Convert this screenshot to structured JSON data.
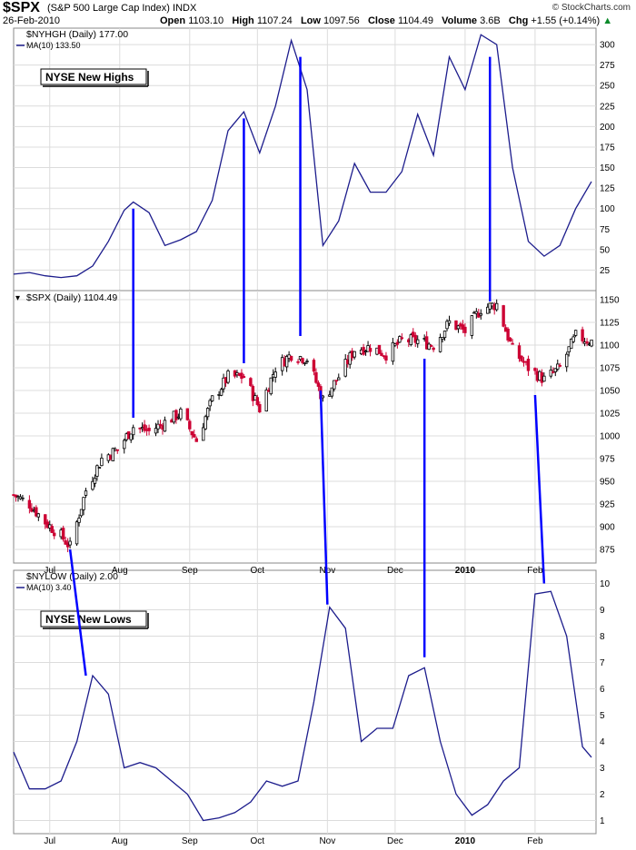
{
  "header": {
    "symbol": "$SPX",
    "description": "(S&P 500 Large Cap Index)",
    "exchange": "INDX",
    "date": "26-Feb-2010",
    "copyright": "© StockCharts.com",
    "open_label": "Open",
    "open": "1103.10",
    "high_label": "High",
    "high": "1107.24",
    "low_label": "Low",
    "low": "1097.56",
    "close_label": "Close",
    "close": "1104.49",
    "volume_label": "Volume",
    "volume": "3.6B",
    "chg_label": "Chg",
    "chg": "+1.55 (+0.14%)",
    "chg_icon": "up-triangle-icon"
  },
  "colors": {
    "line": "#1c1c8c",
    "annotation": "#0000ff",
    "candle_up": "#000000",
    "candle_down": "#cc0033",
    "grid": "#dcdcdc"
  },
  "chart_data": [
    {
      "type": "line",
      "panel": "top",
      "legend_title": "$NYHGH (Daily) 177.00",
      "legend_ma": "MA(10) 133.50",
      "label_box": "NYSE New Highs",
      "ylim": [
        0,
        320
      ],
      "yticks": [
        25,
        50,
        75,
        100,
        125,
        150,
        175,
        200,
        225,
        250,
        275,
        300
      ],
      "series": [
        {
          "name": "MA(10)",
          "points": [
            [
              "2009-06-15",
              20
            ],
            [
              "2009-06-22",
              22
            ],
            [
              "2009-06-29",
              18
            ],
            [
              "2009-07-06",
              16
            ],
            [
              "2009-07-13",
              18
            ],
            [
              "2009-07-20",
              30
            ],
            [
              "2009-07-27",
              60
            ],
            [
              "2009-08-03",
              98
            ],
            [
              "2009-08-07",
              108
            ],
            [
              "2009-08-14",
              95
            ],
            [
              "2009-08-21",
              55
            ],
            [
              "2009-08-28",
              62
            ],
            [
              "2009-09-04",
              72
            ],
            [
              "2009-09-11",
              110
            ],
            [
              "2009-09-18",
              195
            ],
            [
              "2009-09-25",
              218
            ],
            [
              "2009-10-02",
              168
            ],
            [
              "2009-10-09",
              225
            ],
            [
              "2009-10-16",
              305
            ],
            [
              "2009-10-23",
              245
            ],
            [
              "2009-10-30",
              55
            ],
            [
              "2009-11-06",
              85
            ],
            [
              "2009-11-13",
              155
            ],
            [
              "2009-11-20",
              120
            ],
            [
              "2009-11-27",
              120
            ],
            [
              "2009-12-04",
              145
            ],
            [
              "2009-12-11",
              215
            ],
            [
              "2009-12-18",
              165
            ],
            [
              "2009-12-25",
              285
            ],
            [
              "2010-01-01",
              245
            ],
            [
              "2010-01-08",
              312
            ],
            [
              "2010-01-15",
              300
            ],
            [
              "2010-01-22",
              150
            ],
            [
              "2010-01-29",
              60
            ],
            [
              "2010-02-05",
              42
            ],
            [
              "2010-02-12",
              55
            ],
            [
              "2010-02-19",
              100
            ],
            [
              "2010-02-26",
              133
            ]
          ]
        }
      ]
    },
    {
      "type": "candlestick",
      "panel": "middle",
      "legend_title": "$SPX (Daily) 1104.49",
      "legend_icon": "candlestick-icon",
      "ylim": [
        860,
        1160
      ],
      "yticks": [
        875,
        900,
        925,
        950,
        975,
        1000,
        1025,
        1050,
        1075,
        1100,
        1125,
        1150
      ],
      "series": [
        {
          "name": "$SPX",
          "points": [
            [
              "2009-06-15",
              935
            ],
            [
              "2009-06-22",
              925
            ],
            [
              "2009-06-29",
              905
            ],
            [
              "2009-07-06",
              890
            ],
            [
              "2009-07-10",
              878
            ],
            [
              "2009-07-17",
              940
            ],
            [
              "2009-07-24",
              975
            ],
            [
              "2009-07-31",
              985
            ],
            [
              "2009-08-07",
              1010
            ],
            [
              "2009-08-14",
              1005
            ],
            [
              "2009-08-21",
              1015
            ],
            [
              "2009-08-28",
              1025
            ],
            [
              "2009-09-04",
              995
            ],
            [
              "2009-09-11",
              1040
            ],
            [
              "2009-09-18",
              1065
            ],
            [
              "2009-09-25",
              1065
            ],
            [
              "2009-10-02",
              1030
            ],
            [
              "2009-10-09",
              1075
            ],
            [
              "2009-10-16",
              1090
            ],
            [
              "2009-10-23",
              1085
            ],
            [
              "2009-10-30",
              1040
            ],
            [
              "2009-11-06",
              1065
            ],
            [
              "2009-11-13",
              1095
            ],
            [
              "2009-11-20",
              1098
            ],
            [
              "2009-11-27",
              1090
            ],
            [
              "2009-12-04",
              1105
            ],
            [
              "2009-12-11",
              1105
            ],
            [
              "2009-12-18",
              1100
            ],
            [
              "2009-12-25",
              1125
            ],
            [
              "2010-01-01",
              1115
            ],
            [
              "2010-01-08",
              1140
            ],
            [
              "2010-01-15",
              1145
            ],
            [
              "2010-01-22",
              1095
            ],
            [
              "2010-01-29",
              1075
            ],
            [
              "2010-02-05",
              1062
            ],
            [
              "2010-02-12",
              1075
            ],
            [
              "2010-02-19",
              1110
            ],
            [
              "2010-02-26",
              1104
            ]
          ]
        }
      ]
    },
    {
      "type": "line",
      "panel": "bottom",
      "legend_title": "$NYLOW (Daily) 2.00",
      "legend_ma": "MA(10) 3.40",
      "label_box": "NYSE New Lows",
      "ylim": [
        0.5,
        10.5
      ],
      "yticks": [
        1,
        2,
        3,
        4,
        5,
        6,
        7,
        8,
        9,
        10
      ],
      "series": [
        {
          "name": "MA(10)",
          "points": [
            [
              "2009-06-15",
              3.6
            ],
            [
              "2009-06-22",
              2.2
            ],
            [
              "2009-06-29",
              2.2
            ],
            [
              "2009-07-06",
              2.5
            ],
            [
              "2009-07-13",
              4.0
            ],
            [
              "2009-07-20",
              6.5
            ],
            [
              "2009-07-27",
              5.8
            ],
            [
              "2009-08-03",
              3.0
            ],
            [
              "2009-08-10",
              3.2
            ],
            [
              "2009-08-17",
              3.0
            ],
            [
              "2009-08-24",
              2.5
            ],
            [
              "2009-08-31",
              2.0
            ],
            [
              "2009-09-07",
              1.0
            ],
            [
              "2009-09-14",
              1.1
            ],
            [
              "2009-09-21",
              1.3
            ],
            [
              "2009-09-28",
              1.7
            ],
            [
              "2009-10-05",
              2.5
            ],
            [
              "2009-10-12",
              2.3
            ],
            [
              "2009-10-19",
              2.5
            ],
            [
              "2009-10-26",
              5.5
            ],
            [
              "2009-11-02",
              9.1
            ],
            [
              "2009-11-09",
              8.3
            ],
            [
              "2009-11-16",
              4.0
            ],
            [
              "2009-11-23",
              4.5
            ],
            [
              "2009-11-30",
              4.5
            ],
            [
              "2009-12-07",
              6.5
            ],
            [
              "2009-12-14",
              6.8
            ],
            [
              "2009-12-21",
              4.0
            ],
            [
              "2009-12-28",
              2.0
            ],
            [
              "2010-01-04",
              1.2
            ],
            [
              "2010-01-11",
              1.6
            ],
            [
              "2010-01-18",
              2.5
            ],
            [
              "2010-01-25",
              3.0
            ],
            [
              "2010-02-01",
              9.6
            ],
            [
              "2010-02-08",
              9.7
            ],
            [
              "2010-02-15",
              8.0
            ],
            [
              "2010-02-22",
              3.8
            ],
            [
              "2010-02-26",
              3.4
            ]
          ]
        }
      ]
    }
  ],
  "x_axis": {
    "range": [
      "2009-06-15",
      "2010-02-28"
    ],
    "ticks": [
      {
        "date": "2009-07-01",
        "label": "Jul",
        "bold": false
      },
      {
        "date": "2009-08-01",
        "label": "Aug",
        "bold": false
      },
      {
        "date": "2009-09-01",
        "label": "Sep",
        "bold": false
      },
      {
        "date": "2009-10-01",
        "label": "Oct",
        "bold": false
      },
      {
        "date": "2009-11-01",
        "label": "Nov",
        "bold": false
      },
      {
        "date": "2009-12-01",
        "label": "Dec",
        "bold": false
      },
      {
        "date": "2010-01-01",
        "label": "2010",
        "bold": true
      },
      {
        "date": "2010-02-01",
        "label": "Feb",
        "bold": false
      }
    ]
  },
  "annotations": [
    {
      "from": {
        "panel": "top",
        "date": "2009-08-07",
        "value": 100
      },
      "to": {
        "panel": "middle",
        "date": "2009-08-07",
        "value": 1020
      }
    },
    {
      "from": {
        "panel": "top",
        "date": "2009-09-25",
        "value": 210
      },
      "to": {
        "panel": "middle",
        "date": "2009-09-25",
        "value": 1080
      }
    },
    {
      "from": {
        "panel": "top",
        "date": "2009-10-20",
        "value": 285
      },
      "to": {
        "panel": "middle",
        "date": "2009-10-20",
        "value": 1110
      }
    },
    {
      "from": {
        "panel": "top",
        "date": "2010-01-12",
        "value": 285
      },
      "to": {
        "panel": "middle",
        "date": "2010-01-12",
        "value": 1148
      }
    },
    {
      "from": {
        "panel": "middle",
        "date": "2009-07-10",
        "value": 875
      },
      "to": {
        "panel": "bottom",
        "date": "2009-07-17",
        "value": 6.5
      }
    },
    {
      "from": {
        "panel": "middle",
        "date": "2009-10-29",
        "value": 1050
      },
      "to": {
        "panel": "bottom",
        "date": "2009-11-01",
        "value": 9.2
      }
    },
    {
      "from": {
        "panel": "middle",
        "date": "2009-12-14",
        "value": 1085
      },
      "to": {
        "panel": "bottom",
        "date": "2009-12-14",
        "value": 7.2
      }
    },
    {
      "from": {
        "panel": "middle",
        "date": "2010-02-01",
        "value": 1045
      },
      "to": {
        "panel": "bottom",
        "date": "2010-02-05",
        "value": 10.0
      }
    }
  ]
}
